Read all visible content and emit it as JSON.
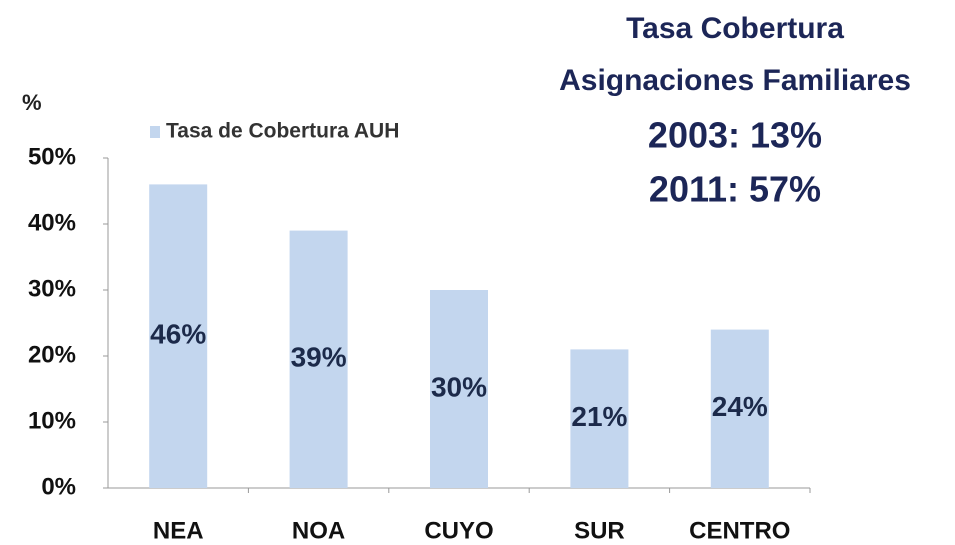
{
  "chart_data": {
    "type": "bar",
    "y_axis_label": "%",
    "annotations": [
      "Tasa Cobertura",
      "Asignaciones Familiares",
      "2003: 13%",
      "2011: 57%"
    ],
    "categories": [
      "NEA",
      "NOA",
      "CUYO",
      "SUR",
      "CENTRO"
    ],
    "series": [
      {
        "name": "Tasa de Cobertura AUH",
        "color": "#c3d6ee",
        "values": [
          46,
          39,
          30,
          21,
          24
        ],
        "value_labels": [
          "46%",
          "39%",
          "30%",
          "21%",
          "24%"
        ]
      }
    ],
    "ylim": [
      0,
      50
    ],
    "yticks": [
      {
        "value": 0,
        "label": "0%"
      },
      {
        "value": 10,
        "label": "10%"
      },
      {
        "value": 20,
        "label": "20%"
      },
      {
        "value": 30,
        "label": "30%"
      },
      {
        "value": 40,
        "label": "40%"
      },
      {
        "value": 50,
        "label": "50%"
      }
    ],
    "legend": "top-left"
  }
}
